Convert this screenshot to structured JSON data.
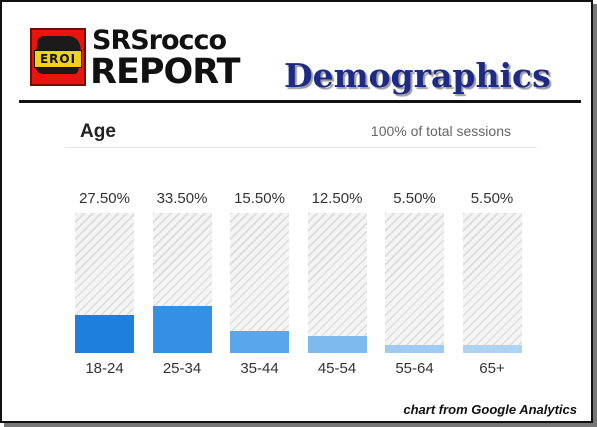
{
  "brand": {
    "badge": "EROI",
    "name_top": "SRSrocco",
    "name_bottom": "REPORT"
  },
  "header": {
    "title": "Demographics"
  },
  "card": {
    "title": "Age",
    "subtitle": "100% of total sessions"
  },
  "chart_data": {
    "type": "bar",
    "title": "Age",
    "subtitle": "100% of total sessions",
    "categories": [
      "18-24",
      "25-34",
      "35-44",
      "45-54",
      "55-64",
      "65+"
    ],
    "values": [
      27.5,
      33.5,
      15.5,
      12.5,
      5.5,
      5.5
    ],
    "value_labels": [
      "27.50%",
      "33.50%",
      "15.50%",
      "12.50%",
      "5.50%",
      "5.50%"
    ],
    "unit": "%",
    "ylim": [
      0,
      100
    ],
    "colors": [
      "#1e7fdc",
      "#3390e2",
      "#5aa6ea",
      "#7fbaef",
      "#9ecbf3",
      "#aed4f5"
    ],
    "track_color": "#e0e0e0",
    "grid": false
  },
  "footer": {
    "credit": "chart from Google Analytics"
  }
}
